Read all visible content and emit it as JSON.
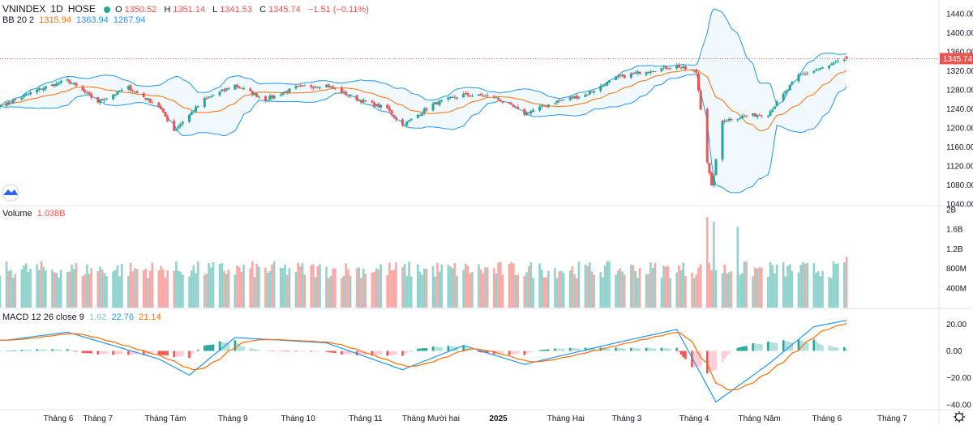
{
  "header": {
    "symbol": "VNINDEX",
    "timeframe": "1D",
    "exchange": "HOSE",
    "open_label": "O",
    "open": "1350.52",
    "high_label": "H",
    "high": "1351.14",
    "low_label": "L",
    "low": "1341.53",
    "close_label": "C",
    "close": "1345.74",
    "change": "−1.51 (−0.11%)"
  },
  "bb_legend": {
    "name": "BB 20 2",
    "basis": "1315.94",
    "upper": "1363.94",
    "lower": "1267.94"
  },
  "volume_legend": {
    "name": "Volume",
    "value": "1.038B"
  },
  "macd_legend": {
    "name": "MACD 12 26 close 9",
    "hist": "1.62",
    "macd": "22.76",
    "signal": "21.14"
  },
  "last_price_tag": "1345.74",
  "colors": {
    "up": "#26a69a",
    "down": "#ef5350",
    "bb_band": "#2196f3",
    "bb_basis": "#ff6d00",
    "macd": "#2196f3",
    "signal": "#ff6d00"
  },
  "x_axis": [
    "Tháng 6",
    "Tháng 7",
    "Tháng Tám",
    "Tháng 9",
    "Tháng 10",
    "Tháng 11",
    "Tháng Mười hai",
    "2025",
    "Tháng Hai",
    "Tháng 3",
    "Tháng 4",
    "Tháng Năm",
    "Tháng 6",
    "Tháng 7"
  ],
  "price_axis": [
    "1440.00",
    "1400.00",
    "1360.00",
    "1320.00",
    "1280.00",
    "1240.00",
    "1200.00",
    "1160.00",
    "1120.00",
    "1080.00",
    "1040.00"
  ],
  "volume_axis": [
    "2B",
    "1.6B",
    "1.2B",
    "800M",
    "400M"
  ],
  "macd_axis": [
    "20.00",
    "0.00",
    "−20.00",
    "−40.00"
  ],
  "chart_data": [
    {
      "type": "candlestick",
      "title": "VNINDEX 1D HOSE",
      "ylim": [
        1040,
        1440
      ],
      "keypoints_close": [
        {
          "date": "2024-05-20",
          "close": 1250
        },
        {
          "date": "2024-06-03",
          "close": 1280
        },
        {
          "date": "2024-06-17",
          "close": 1300
        },
        {
          "date": "2024-07-01",
          "close": 1255
        },
        {
          "date": "2024-07-15",
          "close": 1285
        },
        {
          "date": "2024-07-29",
          "close": 1245
        },
        {
          "date": "2024-08-05",
          "close": 1195
        },
        {
          "date": "2024-08-19",
          "close": 1260
        },
        {
          "date": "2024-09-02",
          "close": 1290
        },
        {
          "date": "2024-09-16",
          "close": 1260
        },
        {
          "date": "2024-09-30",
          "close": 1285
        },
        {
          "date": "2024-10-14",
          "close": 1290
        },
        {
          "date": "2024-10-28",
          "close": 1260
        },
        {
          "date": "2024-11-11",
          "close": 1240
        },
        {
          "date": "2024-11-18",
          "close": 1205
        },
        {
          "date": "2024-12-02",
          "close": 1250
        },
        {
          "date": "2024-12-16",
          "close": 1270
        },
        {
          "date": "2024-12-30",
          "close": 1265
        },
        {
          "date": "2025-01-13",
          "close": 1230
        },
        {
          "date": "2025-01-27",
          "close": 1255
        },
        {
          "date": "2025-02-10",
          "close": 1270
        },
        {
          "date": "2025-02-24",
          "close": 1305
        },
        {
          "date": "2025-03-10",
          "close": 1320
        },
        {
          "date": "2025-03-24",
          "close": 1330
        },
        {
          "date": "2025-04-02",
          "close": 1317
        },
        {
          "date": "2025-04-07",
          "close": 1130
        },
        {
          "date": "2025-04-09",
          "close": 1075
        },
        {
          "date": "2025-04-14",
          "close": 1215
        },
        {
          "date": "2025-04-24",
          "close": 1225
        },
        {
          "date": "2025-05-05",
          "close": 1230
        },
        {
          "date": "2025-05-19",
          "close": 1310
        },
        {
          "date": "2025-06-02",
          "close": 1330
        },
        {
          "date": "2025-06-10",
          "close": 1345.74
        }
      ],
      "last_bar": {
        "open": 1350.52,
        "high": 1351.14,
        "low": 1341.53,
        "close": 1345.74
      }
    },
    {
      "type": "bar",
      "title": "Volume",
      "ylim": [
        0,
        2000000000
      ],
      "last_value": 1038000000,
      "peak_values": [
        {
          "date": "2025-04-07",
          "value": 1850000000
        },
        {
          "date": "2025-04-10",
          "value": 1750000000
        },
        {
          "date": "2025-04-21",
          "value": 1650000000
        }
      ]
    },
    {
      "type": "line",
      "title": "MACD 12 26 close 9",
      "ylim": [
        -45,
        25
      ],
      "keypoints_macd": [
        {
          "date": "2024-05-20",
          "macd": 8
        },
        {
          "date": "2024-06-17",
          "macd": 14
        },
        {
          "date": "2024-07-29",
          "macd": -6
        },
        {
          "date": "2024-08-12",
          "macd": -18
        },
        {
          "date": "2024-09-02",
          "macd": 10
        },
        {
          "date": "2024-10-14",
          "macd": 6
        },
        {
          "date": "2024-11-18",
          "macd": -14
        },
        {
          "date": "2024-12-16",
          "macd": 4
        },
        {
          "date": "2025-01-13",
          "macd": -10
        },
        {
          "date": "2025-02-24",
          "macd": 6
        },
        {
          "date": "2025-03-24",
          "macd": 16
        },
        {
          "date": "2025-04-11",
          "macd": -38
        },
        {
          "date": "2025-05-05",
          "macd": -10
        },
        {
          "date": "2025-05-26",
          "macd": 18
        },
        {
          "date": "2025-06-10",
          "macd": 22.76
        }
      ],
      "last_signal": 21.14,
      "last_histogram": 1.62
    }
  ]
}
